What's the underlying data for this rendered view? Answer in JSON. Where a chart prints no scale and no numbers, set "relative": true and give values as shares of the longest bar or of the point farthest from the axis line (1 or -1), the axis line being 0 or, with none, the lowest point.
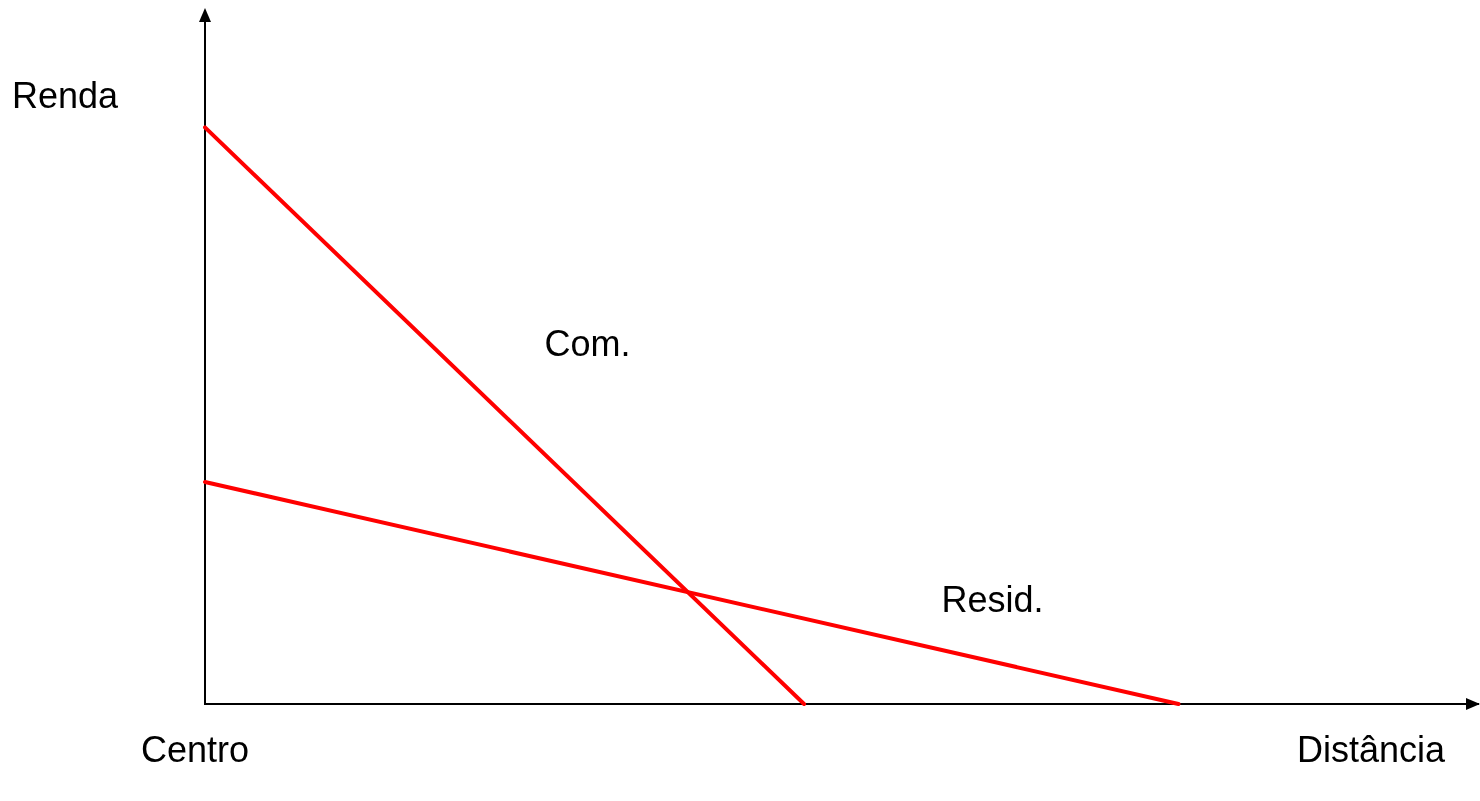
{
  "chart_data": {
    "type": "line",
    "relative": true,
    "ylabel": "Renda",
    "xlabel": "Distância",
    "annotations": [
      "Centro"
    ],
    "legend": false,
    "categories": [
      null,
      null,
      null,
      null,
      null,
      null,
      null,
      null,
      null,
      null,
      null,
      null,
      null,
      null,
      null,
      null,
      null,
      null
    ],
    "grid": false,
    "marker": "none",
    "line_style": "solid",
    "series": [
      {
        "name": "Com.",
        "color": "#ff0000",
        "values": [
          1,
          null,
          null,
          null,
          null,
          null,
          null,
          null,
          0,
          null,
          null,
          null,
          null,
          null,
          null,
          null,
          null,
          null
        ]
      },
      {
        "name": "Resid.",
        "color": "#ff0000",
        "values": [
          0.385,
          null,
          null,
          null,
          null,
          null,
          null,
          null,
          null,
          null,
          null,
          null,
          null,
          0,
          null,
          null,
          null,
          null
        ]
      }
    ]
  }
}
